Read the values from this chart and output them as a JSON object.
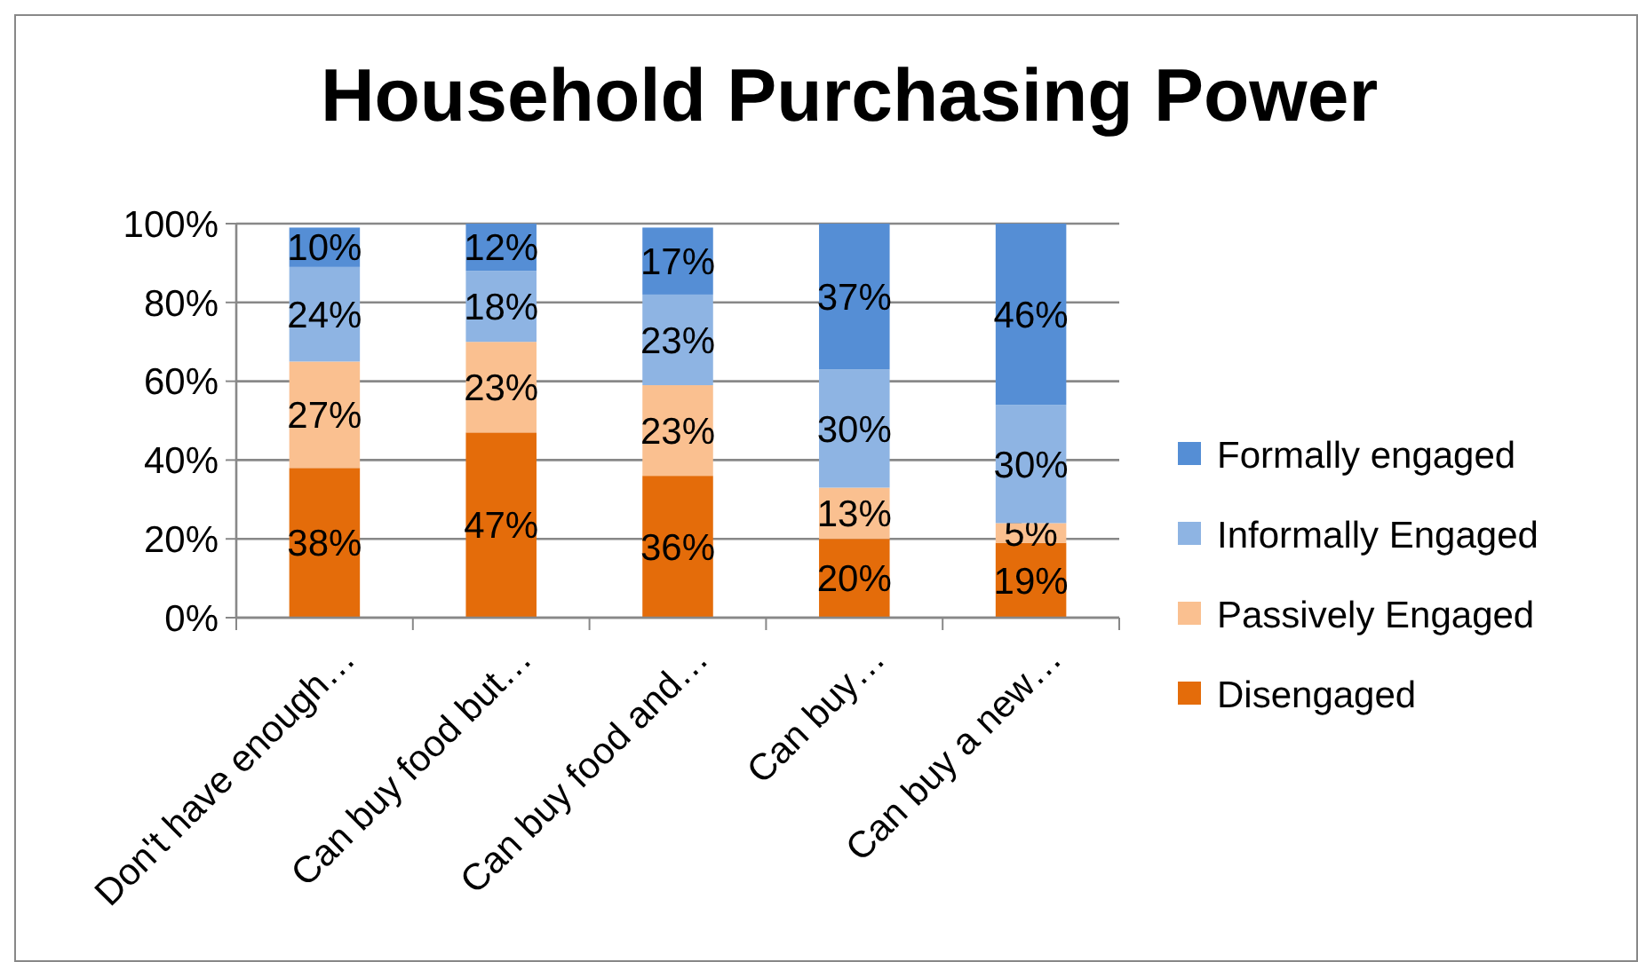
{
  "chart_data": {
    "type": "bar",
    "title": "Household Purchasing Power",
    "stacked": true,
    "legend": "right",
    "grid": "y",
    "categories": [
      "Don't have enough…",
      "Can buy food but…",
      "Can buy food and…",
      "Can buy…",
      "Can buy a new…"
    ],
    "ylim": [
      0,
      100
    ],
    "yticks": [
      {
        "value": 0,
        "label": "0%"
      },
      {
        "value": 20,
        "label": "20%"
      },
      {
        "value": 40,
        "label": "40%"
      },
      {
        "value": 60,
        "label": "60%"
      },
      {
        "value": 80,
        "label": "80%"
      },
      {
        "value": 100,
        "label": "100%"
      }
    ],
    "series": [
      {
        "name": "Disengaged",
        "color": "#e46c0a",
        "values": [
          38,
          47,
          36,
          20,
          19
        ],
        "value_labels": [
          "38%",
          "47%",
          "36%",
          "20%",
          "19%"
        ]
      },
      {
        "name": "Passively Engaged",
        "color": "#fac090",
        "values": [
          27,
          23,
          23,
          13,
          5
        ],
        "value_labels": [
          "27%",
          "23%",
          "23%",
          "13%",
          "5%"
        ]
      },
      {
        "name": "Informally Engaged",
        "color": "#8eb4e3",
        "values": [
          24,
          18,
          23,
          30,
          30
        ],
        "value_labels": [
          "24%",
          "18%",
          "23%",
          "30%",
          "30%"
        ]
      },
      {
        "name": "Formally engaged",
        "color": "#558ed5",
        "values": [
          10,
          12,
          17,
          37,
          46
        ],
        "value_labels": [
          "10%",
          "12%",
          "17%",
          "37%",
          "46%"
        ]
      }
    ]
  }
}
